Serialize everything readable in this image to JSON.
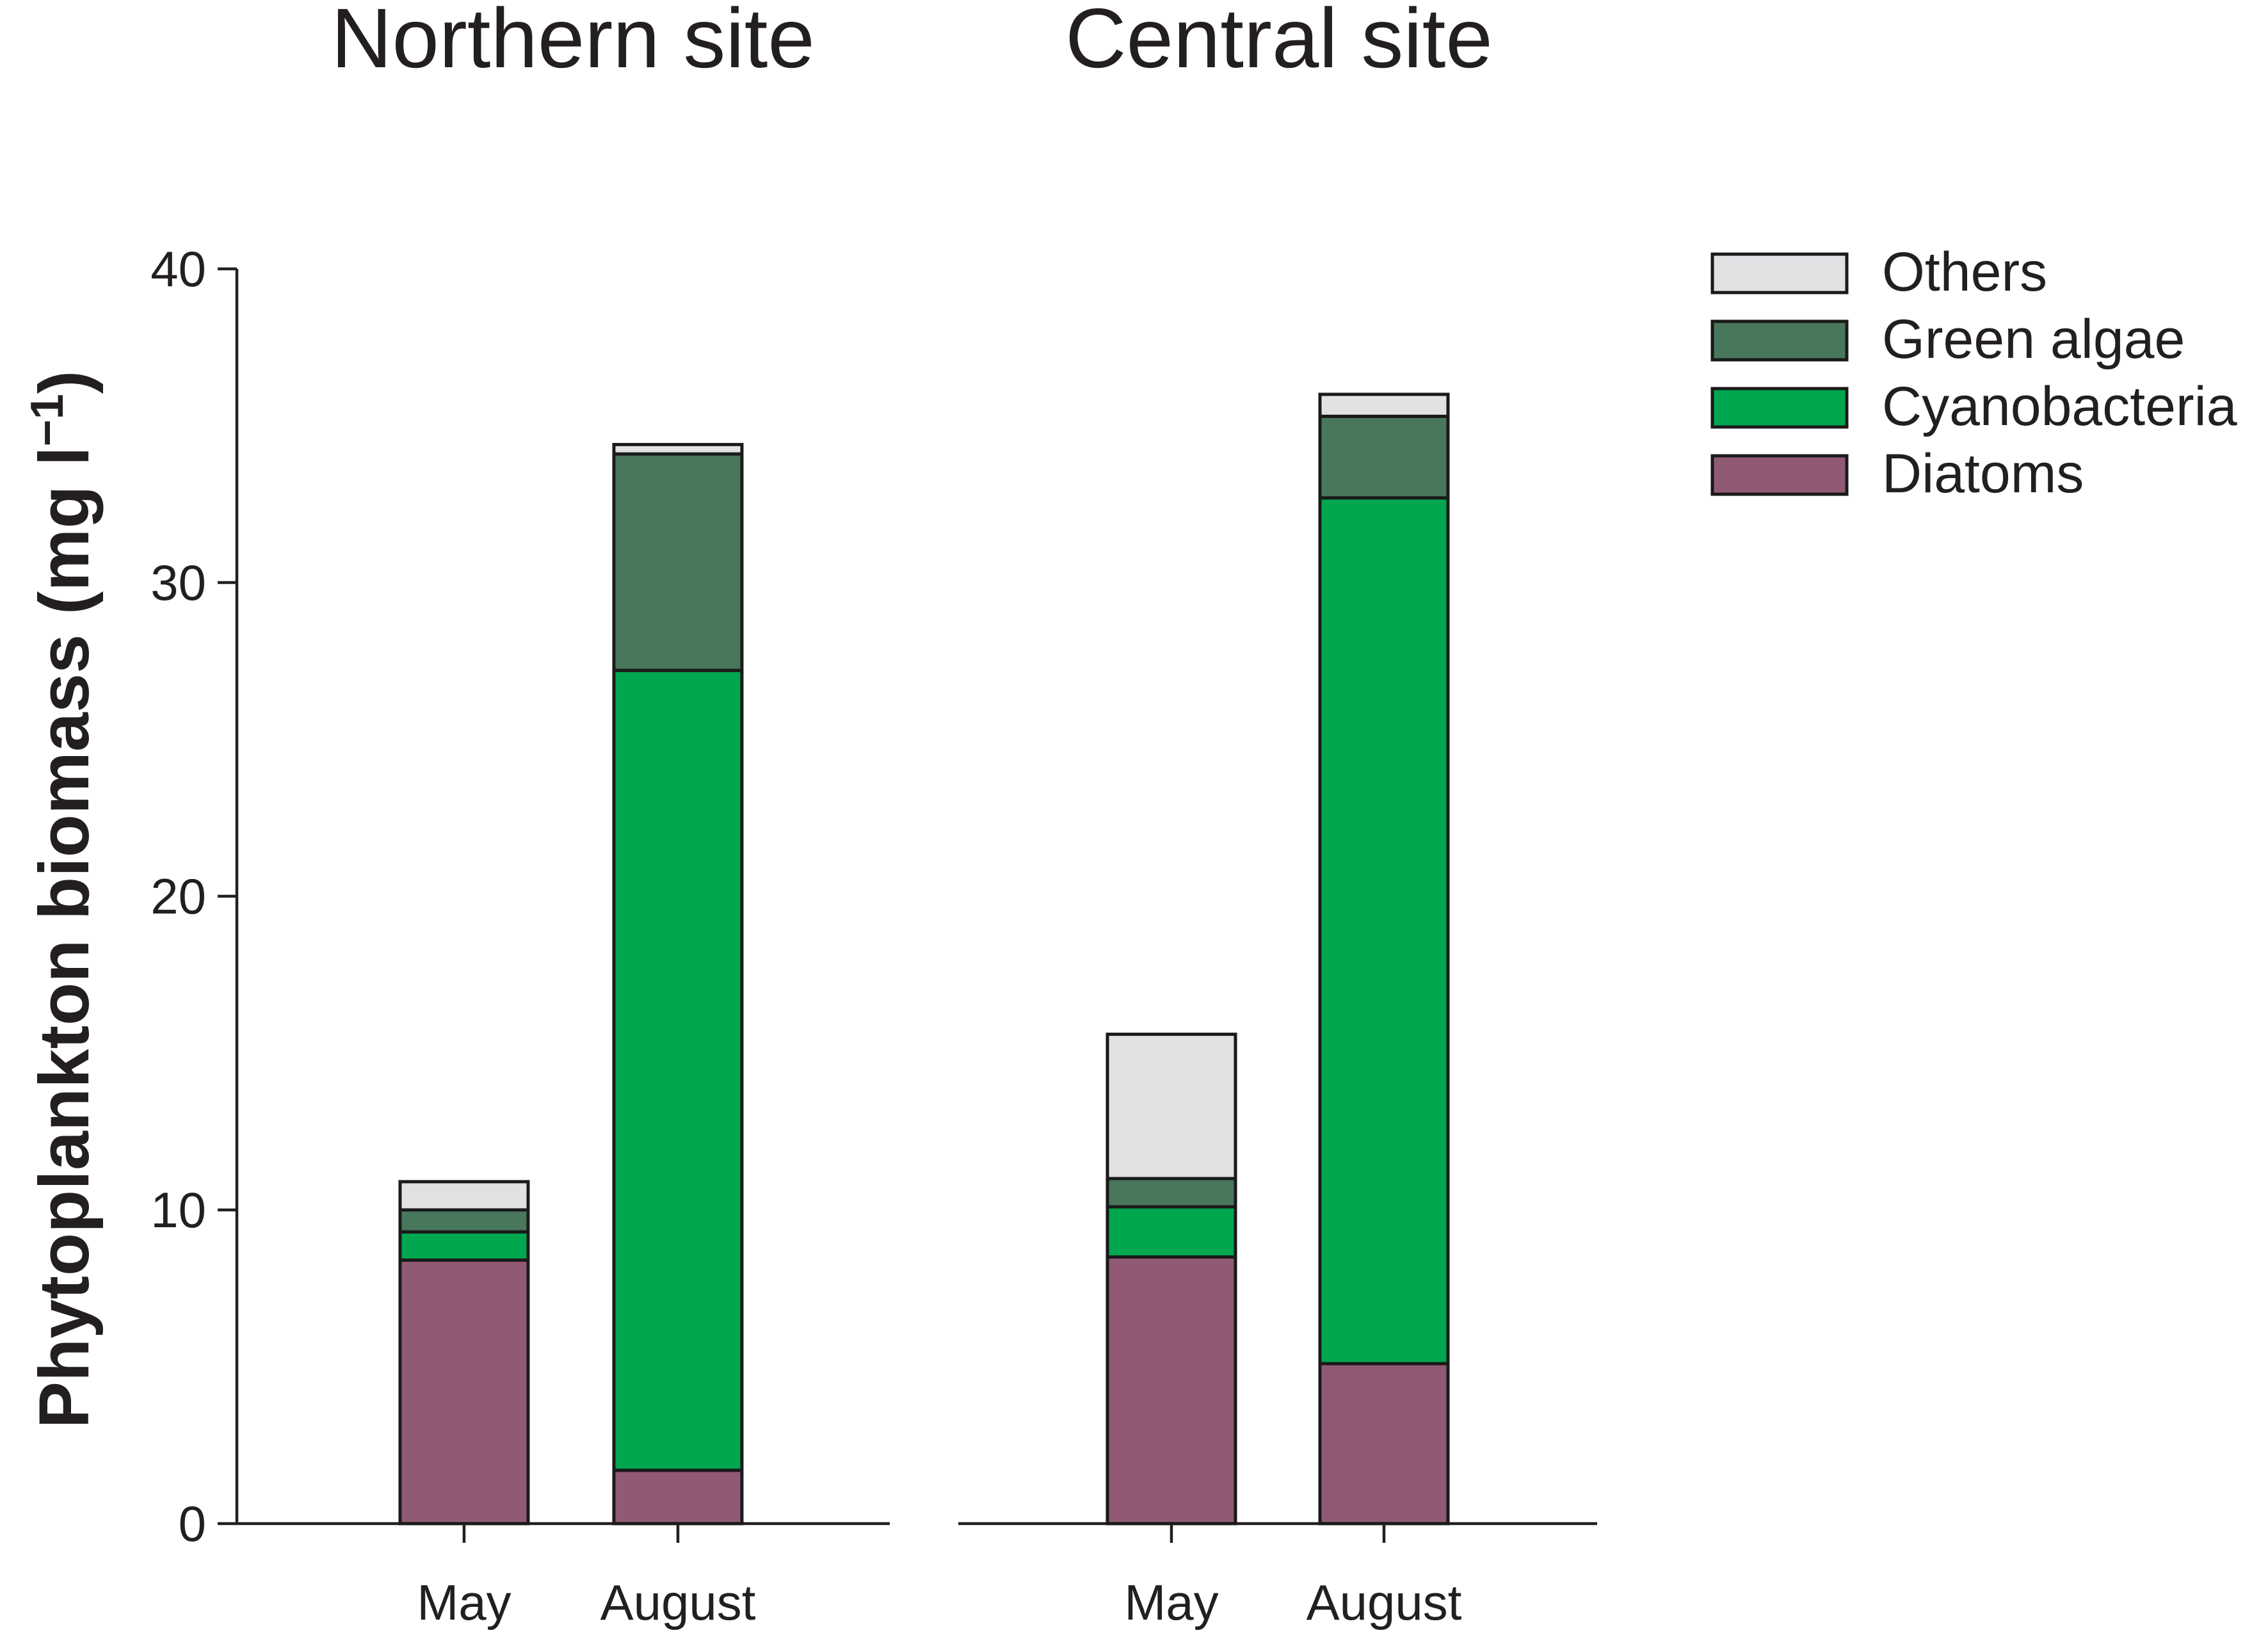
{
  "chart_data": {
    "type": "bar",
    "stacked": true,
    "ylabel": {
      "text": "Phytoplankton biomass (mg l",
      "superscript": "−1",
      "close": ")"
    },
    "ylim": [
      0,
      40
    ],
    "yticks": [
      "0",
      "10",
      "20",
      "30",
      "40"
    ],
    "grid": false,
    "legend_position": "top-right",
    "legend_order": [
      "Others",
      "Green algae",
      "Cyanobacteria",
      "Diatoms"
    ],
    "colors": {
      "Diatoms": "#905a74",
      "Cyanobacteria": "#00a74f",
      "Green algae": "#48775c",
      "Others": "#e1e2e4"
    },
    "panels": [
      {
        "title": "Northern site",
        "categories": [
          "May",
          "August"
        ],
        "series": [
          {
            "name": "Diatoms",
            "values": [
              8.4,
              1.7
            ]
          },
          {
            "name": "Cyanobacteria",
            "values": [
              0.9,
              25.5
            ]
          },
          {
            "name": "Green algae",
            "values": [
              0.7,
              6.9
            ]
          },
          {
            "name": "Others",
            "values": [
              0.9,
              0.3
            ]
          }
        ]
      },
      {
        "title": "Central site",
        "categories": [
          "May",
          "August"
        ],
        "series": [
          {
            "name": "Diatoms",
            "values": [
              8.5,
              5.1
            ]
          },
          {
            "name": "Cyanobacteria",
            "values": [
              1.6,
              27.6
            ]
          },
          {
            "name": "Green algae",
            "values": [
              0.9,
              2.6
            ]
          },
          {
            "name": "Others",
            "values": [
              4.6,
              0.7
            ]
          }
        ]
      }
    ]
  }
}
